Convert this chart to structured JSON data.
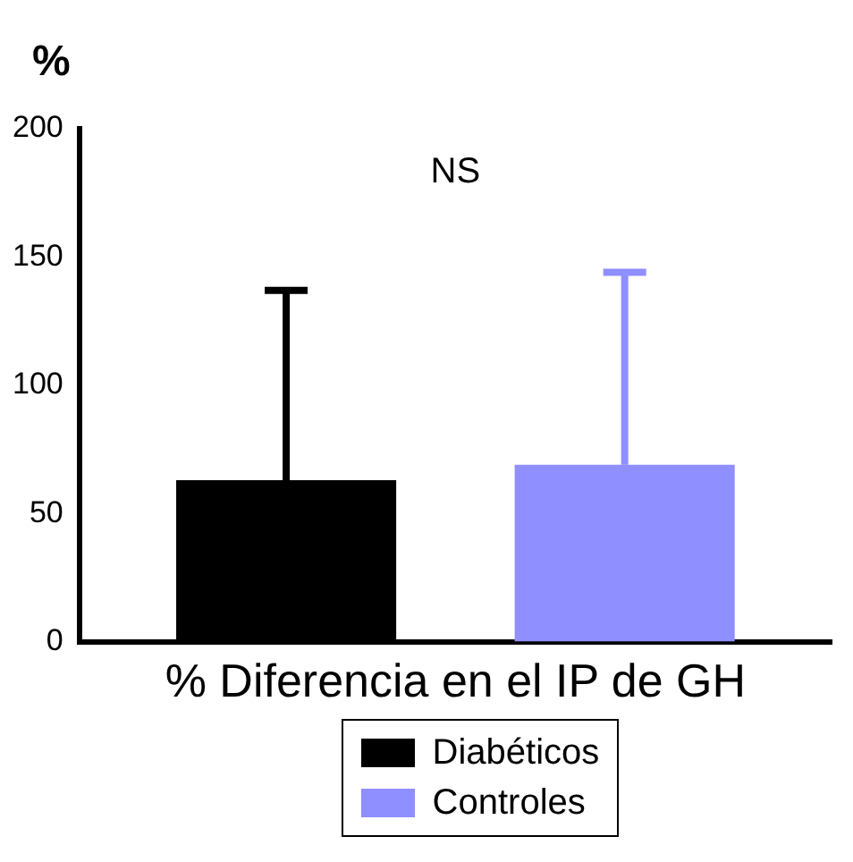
{
  "chart_data": {
    "type": "bar",
    "ylabel": "%",
    "xlabel": "% Diferencia en el IP de GH",
    "categories": [
      null
    ],
    "series": [
      {
        "name": "Diabéticos",
        "color": "#000000",
        "values": [
          63
        ],
        "errors": [
          [
            63,
            137
          ]
        ]
      },
      {
        "name": "Controles",
        "color": "#8f8fff",
        "values": [
          69
        ],
        "errors": [
          [
            69,
            144
          ]
        ]
      }
    ],
    "ylim": [
      0,
      200
    ],
    "yticks": [
      0,
      50,
      100,
      150,
      200
    ],
    "grid": false,
    "legend": "bottom",
    "annotations": [
      "NS"
    ]
  }
}
